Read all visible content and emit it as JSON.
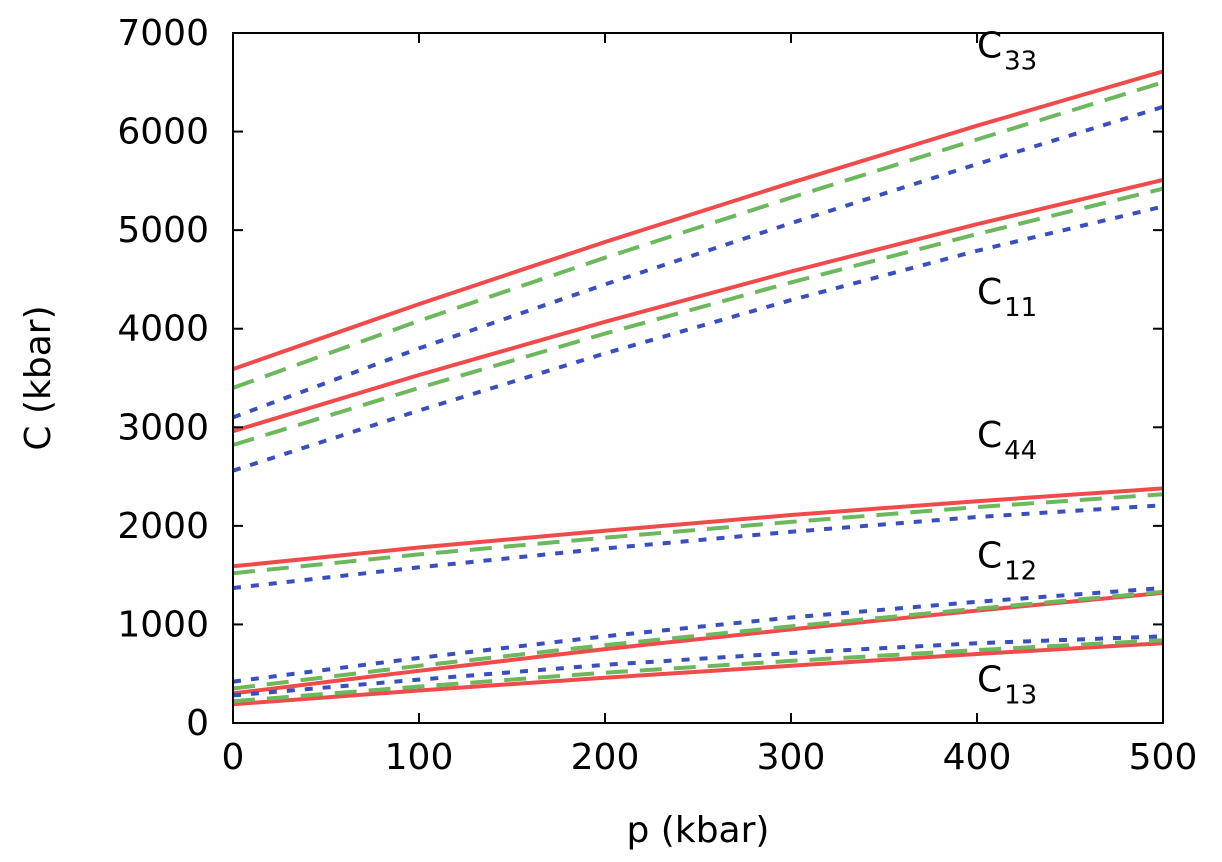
{
  "chart_data": {
    "type": "line",
    "title": "",
    "xlabel": "p (kbar)",
    "ylabel": "C (kbar)",
    "xlim": [
      0,
      500
    ],
    "ylim": [
      0,
      7000
    ],
    "xticks": [
      0,
      100,
      200,
      300,
      400,
      500
    ],
    "yticks": [
      0,
      1000,
      2000,
      3000,
      4000,
      5000,
      6000,
      7000
    ],
    "grid": false,
    "legend": null,
    "styles": {
      "solid": {
        "color": "#f04a4a",
        "dash": ""
      },
      "dashed": {
        "color": "#6cb85c",
        "dash": "22,12"
      },
      "dotted": {
        "color": "#3a4ec0",
        "dash": "8,10"
      }
    },
    "groups": [
      {
        "name": "C33",
        "label_main": "C",
        "label_sub": "33",
        "label_at": [
          400,
          6750
        ],
        "series": [
          {
            "style": "solid",
            "x": [
              0,
              100,
              200,
              300,
              400,
              500
            ],
            "y": [
              3590,
              4250,
              4880,
              5480,
              6060,
              6610
            ]
          },
          {
            "style": "dashed",
            "x": [
              0,
              100,
              200,
              300,
              400,
              500
            ],
            "y": [
              3400,
              4080,
              4720,
              5330,
              5920,
              6500
            ]
          },
          {
            "style": "dotted",
            "x": [
              0,
              100,
              200,
              300,
              400,
              500
            ],
            "y": [
              3100,
              3800,
              4450,
              5070,
              5670,
              6250
            ]
          }
        ]
      },
      {
        "name": "C11",
        "label_main": "C",
        "label_sub": "11",
        "label_at": [
          400,
          4250
        ],
        "series": [
          {
            "style": "solid",
            "x": [
              0,
              100,
              200,
              300,
              400,
              500
            ],
            "y": [
              2960,
              3530,
              4070,
              4580,
              5060,
              5510
            ]
          },
          {
            "style": "dashed",
            "x": [
              0,
              100,
              200,
              300,
              400,
              500
            ],
            "y": [
              2820,
              3400,
              3950,
              4470,
              4960,
              5420
            ]
          },
          {
            "style": "dotted",
            "x": [
              0,
              100,
              200,
              300,
              400,
              500
            ],
            "y": [
              2560,
              3170,
              3750,
              4290,
              4790,
              5240
            ]
          }
        ]
      },
      {
        "name": "C44",
        "label_main": "C",
        "label_sub": "44",
        "label_at": [
          400,
          2800
        ],
        "series": [
          {
            "style": "solid",
            "x": [
              0,
              100,
              200,
              300,
              400,
              500
            ],
            "y": [
              1590,
              1780,
              1950,
              2110,
              2250,
              2380
            ]
          },
          {
            "style": "dashed",
            "x": [
              0,
              100,
              200,
              300,
              400,
              500
            ],
            "y": [
              1520,
              1710,
              1880,
              2040,
              2190,
              2320
            ]
          },
          {
            "style": "dotted",
            "x": [
              0,
              100,
              200,
              300,
              400,
              500
            ],
            "y": [
              1370,
              1580,
              1770,
              1940,
              2090,
              2210
            ]
          }
        ]
      },
      {
        "name": "C12",
        "label_main": "C",
        "label_sub": "12",
        "label_at": [
          400,
          1580
        ],
        "series": [
          {
            "style": "solid",
            "x": [
              0,
              100,
              200,
              300,
              400,
              500
            ],
            "y": [
              300,
              530,
              750,
              950,
              1140,
              1320
            ]
          },
          {
            "style": "dashed",
            "x": [
              0,
              100,
              200,
              300,
              400,
              500
            ],
            "y": [
              350,
              580,
              790,
              980,
              1160,
              1330
            ]
          },
          {
            "style": "dotted",
            "x": [
              0,
              100,
              200,
              300,
              400,
              500
            ],
            "y": [
              420,
              660,
              880,
              1070,
              1230,
              1370
            ]
          }
        ]
      },
      {
        "name": "C13",
        "label_main": "C",
        "label_sub": "13",
        "label_at": [
          400,
          320
        ],
        "series": [
          {
            "style": "solid",
            "x": [
              0,
              100,
              200,
              300,
              400,
              500
            ],
            "y": [
              190,
              330,
              460,
              580,
              700,
              810
            ]
          },
          {
            "style": "dashed",
            "x": [
              0,
              100,
              200,
              300,
              400,
              500
            ],
            "y": [
              220,
              370,
              510,
              630,
              740,
              840
            ]
          },
          {
            "style": "dotted",
            "x": [
              0,
              100,
              200,
              300,
              400,
              500
            ],
            "y": [
              280,
              440,
              590,
              710,
              810,
              880
            ]
          }
        ]
      }
    ]
  }
}
